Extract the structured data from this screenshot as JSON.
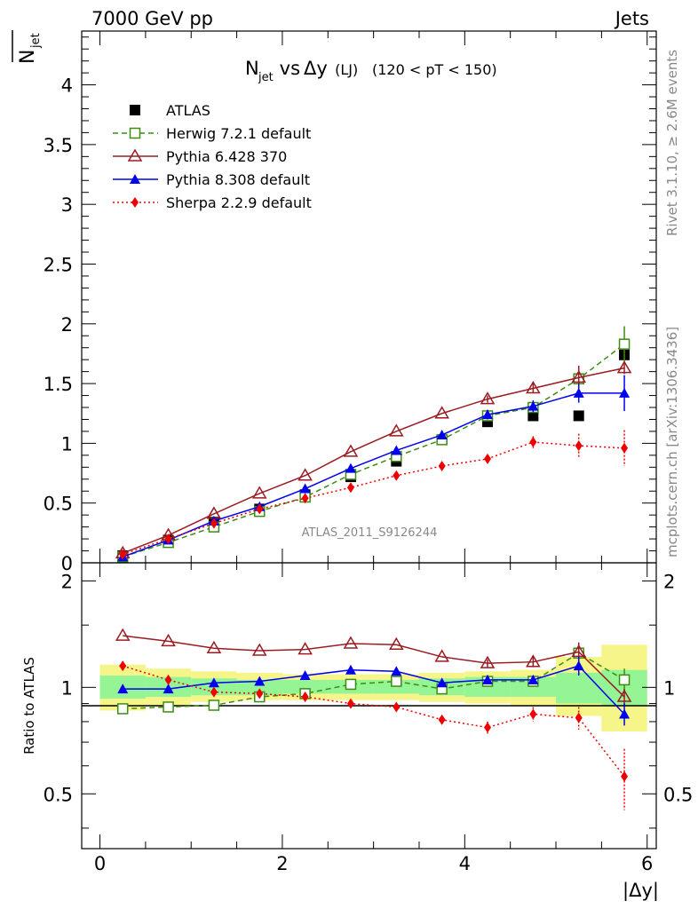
{
  "header": {
    "left": "7000 GeV pp",
    "right": "Jets"
  },
  "side": {
    "rivet": "Rivet 3.1.10, ≥ 2.6M events",
    "mcplots": "mcplots.cern.ch [arXiv:1306.3436]"
  },
  "main": {
    "title_prefix": "N",
    "title_sub": "jet",
    "title_vs": " vs ",
    "title_delta": "Δy",
    "title_lj": " (LJ) ",
    "title_range": "(120 < pT < 150)",
    "ylabel_n": "N",
    "ylabel_sub": "jet",
    "watermark": "ATLAS_2011_S9126244"
  },
  "ratio": {
    "ylabel": "Ratio to ATLAS"
  },
  "xaxis": {
    "label": "|Δy|"
  },
  "chart_data": [
    {
      "type": "scatter",
      "xlim": [
        -0.2,
        6.1
      ],
      "ylim": [
        0,
        4.45
      ],
      "yticks": [
        0,
        0.5,
        1,
        1.5,
        2,
        2.5,
        3,
        3.5,
        4
      ],
      "ytick_labels": [
        "0",
        "0.5",
        "1",
        "1.5",
        "2",
        "2.5",
        "3",
        "3.5",
        "4"
      ],
      "xticks": [
        0,
        2,
        4,
        6
      ],
      "xtick_labels": [
        "0",
        "2",
        "4",
        "6"
      ],
      "legend": "top-left",
      "x": [
        0.25,
        0.75,
        1.25,
        1.75,
        2.25,
        2.75,
        3.25,
        3.75,
        4.25,
        4.75,
        5.25,
        5.75
      ],
      "series": [
        {
          "name": "ATLAS",
          "color": "#000000",
          "marker": "square",
          "line": "none",
          "values": [
            0.06,
            0.19,
            0.34,
            0.45,
            0.57,
            0.72,
            0.85,
            1.03,
            1.18,
            1.23,
            1.23,
            1.74
          ],
          "errors": [
            0,
            0,
            0,
            0,
            0,
            0,
            0,
            0,
            0,
            0,
            0,
            0
          ]
        },
        {
          "name": "Herwig 7.2.1 default",
          "color": "#3d8c12",
          "marker": "open-square",
          "line": "dashed",
          "values": [
            0.05,
            0.17,
            0.3,
            0.43,
            0.55,
            0.74,
            0.89,
            1.03,
            1.23,
            1.3,
            1.54,
            1.83
          ],
          "errors": [
            0,
            0,
            0,
            0,
            0,
            0,
            0,
            0,
            0.02,
            0.03,
            0.06,
            0.15
          ]
        },
        {
          "name": "Pythia 6.428 370",
          "color": "#9b1b22",
          "marker": "open-triangle",
          "line": "solid",
          "values": [
            0.08,
            0.23,
            0.41,
            0.58,
            0.73,
            0.93,
            1.1,
            1.25,
            1.37,
            1.46,
            1.55,
            1.63
          ],
          "errors": [
            0,
            0,
            0,
            0,
            0,
            0,
            0,
            0,
            0.03,
            0.04,
            0.1,
            0.05
          ]
        },
        {
          "name": "Pythia 8.308 default",
          "color": "#0000ee",
          "marker": "triangle",
          "line": "solid",
          "values": [
            0.05,
            0.19,
            0.35,
            0.47,
            0.62,
            0.79,
            0.94,
            1.07,
            1.24,
            1.31,
            1.42,
            1.42
          ],
          "errors": [
            0,
            0,
            0,
            0,
            0,
            0,
            0,
            0,
            0.04,
            0.05,
            0.08,
            0.15
          ]
        },
        {
          "name": "Sherpa 2.2.9 default",
          "color": "#ee0000",
          "marker": "diamond",
          "line": "dotted",
          "values": [
            0.07,
            0.2,
            0.33,
            0.45,
            0.54,
            0.63,
            0.73,
            0.81,
            0.87,
            1.01,
            0.98,
            0.96
          ],
          "errors": [
            0,
            0,
            0,
            0,
            0,
            0,
            0.02,
            0.02,
            0.03,
            0.05,
            0.1,
            0.15
          ]
        }
      ]
    },
    {
      "type": "scatter",
      "xlim": [
        -0.2,
        6.1
      ],
      "ylim": [
        0.35,
        2.25
      ],
      "log_y": true,
      "yticks": [
        0.5,
        1,
        2
      ],
      "ytick_labels": [
        "0.5",
        "1",
        "2"
      ],
      "x": [
        0.25,
        0.75,
        1.25,
        1.75,
        2.25,
        2.75,
        3.25,
        3.75,
        4.25,
        4.75,
        5.25,
        5.75
      ],
      "bands": {
        "edges": [
          0,
          0.5,
          1,
          1.5,
          2,
          2.5,
          3,
          3.5,
          4,
          4.5,
          5,
          5.5,
          6
        ],
        "inner": [
          [
            0.93,
            1.08
          ],
          [
            0.94,
            1.07
          ],
          [
            0.95,
            1.06
          ],
          [
            0.95,
            1.05
          ],
          [
            0.96,
            1.05
          ],
          [
            0.96,
            1.05
          ],
          [
            0.96,
            1.05
          ],
          [
            0.95,
            1.06
          ],
          [
            0.94,
            1.07
          ],
          [
            0.94,
            1.07
          ],
          [
            0.9,
            1.1
          ],
          [
            0.89,
            1.12
          ]
        ],
        "outer": [
          [
            0.86,
            1.16
          ],
          [
            0.89,
            1.13
          ],
          [
            0.91,
            1.11
          ],
          [
            0.92,
            1.1
          ],
          [
            0.92,
            1.09
          ],
          [
            0.92,
            1.09
          ],
          [
            0.92,
            1.09
          ],
          [
            0.91,
            1.1
          ],
          [
            0.9,
            1.11
          ],
          [
            0.89,
            1.12
          ],
          [
            0.83,
            1.22
          ],
          [
            0.75,
            1.32
          ]
        ],
        "inner_color": "#95f595",
        "outer_color": "#f6f58a"
      },
      "series": [
        {
          "name": "Herwig 7.2.1 default",
          "color": "#3d8c12",
          "marker": "open-square",
          "line": "dashed",
          "values": [
            0.87,
            0.88,
            0.89,
            0.94,
            0.96,
            1.02,
            1.04,
            0.99,
            1.04,
            1.04,
            1.25,
            1.05
          ],
          "errors": [
            0,
            0,
            0,
            0,
            0,
            0,
            0,
            0,
            0.02,
            0.03,
            0.05,
            0.08
          ]
        },
        {
          "name": "Pythia 6.428 370",
          "color": "#9b1b22",
          "marker": "open-triangle",
          "line": "solid",
          "values": [
            1.4,
            1.35,
            1.29,
            1.27,
            1.28,
            1.33,
            1.32,
            1.22,
            1.17,
            1.18,
            1.26,
            0.94
          ],
          "errors": [
            0,
            0,
            0,
            0,
            0,
            0,
            0,
            0,
            0.03,
            0.04,
            0.08,
            0.05
          ]
        },
        {
          "name": "Pythia 8.308 default",
          "color": "#0000ee",
          "marker": "triangle",
          "line": "solid",
          "values": [
            0.99,
            0.99,
            1.03,
            1.04,
            1.08,
            1.12,
            1.11,
            1.03,
            1.05,
            1.05,
            1.15,
            0.84
          ],
          "errors": [
            0.02,
            0,
            0,
            0,
            0,
            0,
            0,
            0,
            0.03,
            0.03,
            0.07,
            0.06
          ]
        },
        {
          "name": "Sherpa 2.2.9 default",
          "color": "#ee0000",
          "marker": "diamond",
          "line": "dotted",
          "values": [
            1.15,
            1.05,
            0.97,
            0.96,
            0.94,
            0.9,
            0.88,
            0.81,
            0.77,
            0.84,
            0.82,
            0.56
          ],
          "errors": [
            0.03,
            0.02,
            0,
            0,
            0,
            0,
            0,
            0.02,
            0.03,
            0.04,
            0.06,
            0.11
          ]
        }
      ]
    }
  ]
}
